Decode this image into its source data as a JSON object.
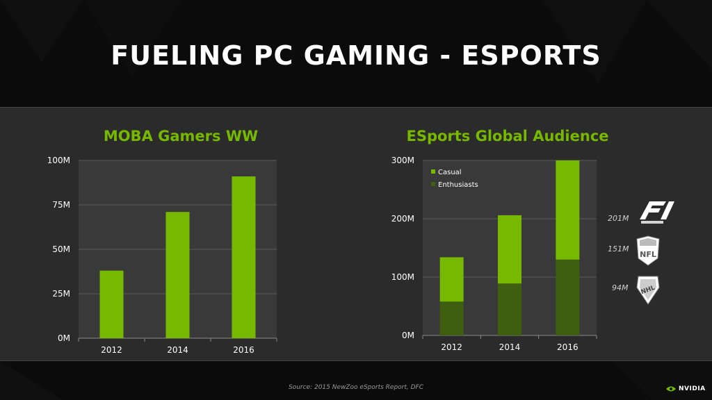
{
  "slide": {
    "title": "FUELING PC GAMING - ESPORTS",
    "source": "Source: 2015 NewZoo eSports Report, DFC",
    "brand": "NVIDIA"
  },
  "colors": {
    "accent": "#76b900",
    "dark_green": "#3e5f10",
    "panel": "#2b2b2b",
    "plot_bg": "#393939"
  },
  "comparisons": [
    {
      "label": "201M",
      "icon": "formula-1-logo-icon",
      "value": 201
    },
    {
      "label": "151M",
      "icon": "nfl-logo-icon",
      "value": 151
    },
    {
      "label": "94M",
      "icon": "nhl-logo-icon",
      "value": 94
    }
  ],
  "chart_data": [
    {
      "type": "bar",
      "title": "MOBA Gamers WW",
      "categories": [
        "2012",
        "2014",
        "2016"
      ],
      "values": [
        38,
        71,
        91
      ],
      "ylim": [
        0,
        100
      ],
      "yticks": [
        0,
        25,
        50,
        75,
        100
      ],
      "ytick_labels": [
        "0M",
        "25M",
        "50M",
        "75M",
        "100M"
      ],
      "grid": true,
      "color": "#76b900"
    },
    {
      "type": "bar",
      "stacked": true,
      "title": "ESports Global Audience",
      "categories": [
        "2012",
        "2014",
        "2016"
      ],
      "series": [
        {
          "name": "Enthusiasts",
          "values": [
            58,
            89,
            130
          ],
          "color": "#3e5f10"
        },
        {
          "name": "Casual",
          "values": [
            76,
            117,
            170
          ],
          "color": "#76b900"
        }
      ],
      "ylim": [
        0,
        300
      ],
      "yticks": [
        0,
        100,
        200,
        300
      ],
      "ytick_labels": [
        "0M",
        "100M",
        "200M",
        "300M"
      ],
      "grid": true,
      "legend": "top-left",
      "legend_entries": [
        "Casual",
        "Enthusiasts"
      ]
    }
  ]
}
